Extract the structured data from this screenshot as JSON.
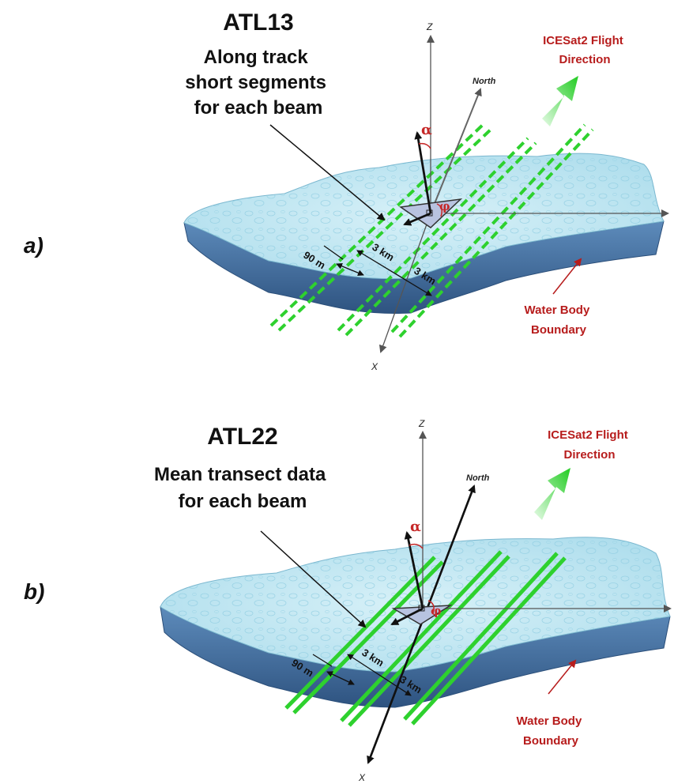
{
  "panels": [
    {
      "id": "a",
      "letter": "a)",
      "title": [
        "ATL13",
        "Along track",
        "short segments",
        "for each beam"
      ],
      "flight_label": [
        "ICESat2 Flight",
        "Direction"
      ],
      "boundary_label": [
        "Water Body",
        "Boundary"
      ],
      "north": "North",
      "z": "Z",
      "x": "X",
      "alpha": "α",
      "phi": "φ",
      "dims": {
        "beam": "90 m",
        "pair1": "3 km",
        "pair2": "3 km"
      },
      "track_style": "dashed"
    },
    {
      "id": "b",
      "letter": "b)",
      "title": [
        "ATL22",
        "Mean transect data",
        "for each beam"
      ],
      "flight_label": [
        "ICESat2 Flight",
        "Direction"
      ],
      "boundary_label": [
        "Water Body",
        "Boundary"
      ],
      "north": "North",
      "z": "Z",
      "x": "X",
      "alpha": "α",
      "phi": "φ",
      "dims": {
        "beam": "90 m",
        "pair1": "3 km",
        "pair2": "3 km"
      },
      "track_style": "solid"
    }
  ],
  "colors": {
    "water_top": "#bfe6f2",
    "water_side": "#3f6e9e",
    "track_green": "#2ed12e",
    "label_red": "#b71c1c"
  }
}
